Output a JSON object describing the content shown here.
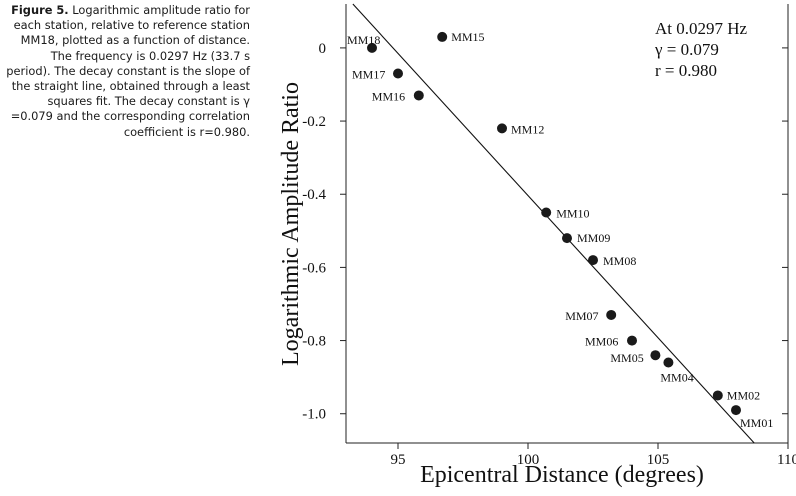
{
  "caption": {
    "label": "Figure 5.",
    "text": "Logarithmic amplitude ratio for each station, relative to reference station MM18, plotted as a function of distance. The frequency is 0.0297 Hz (33.7 s period). The decay constant is the slope of the straight line, obtained through a least squares fit. The decay constant is γ =0.079 and the corresponding correlation coefficient is r=0.980."
  },
  "chart_data": {
    "type": "scatter",
    "title": "",
    "xlabel": "Epicentral Distance (degrees)",
    "ylabel": "Logarithmic Amplitude Ratio",
    "xlim": [
      93,
      110
    ],
    "ylim": [
      -1.08,
      0.12
    ],
    "x_ticks": [
      95,
      100,
      105,
      110
    ],
    "x_tick_labels": [
      "95",
      "100",
      "105",
      "110"
    ],
    "y_ticks": [
      0,
      -0.2,
      -0.4,
      -0.6,
      -0.8,
      -1.0
    ],
    "y_tick_labels": [
      "0",
      "-0.2",
      "-0.4",
      "-0.6",
      "-0.8",
      "-1.0"
    ],
    "grid": false,
    "annotations": [
      "At 0.0297 Hz",
      "γ = 0.079",
      "r = 0.980"
    ],
    "points": [
      {
        "label": "MM18",
        "x": 94.0,
        "y": 0.0
      },
      {
        "label": "MM15",
        "x": 96.7,
        "y": 0.03
      },
      {
        "label": "MM17",
        "x": 95.0,
        "y": -0.07
      },
      {
        "label": "MM16",
        "x": 95.8,
        "y": -0.13
      },
      {
        "label": "MM12",
        "x": 99.0,
        "y": -0.22
      },
      {
        "label": "MM10",
        "x": 100.7,
        "y": -0.45
      },
      {
        "label": "MM09",
        "x": 101.5,
        "y": -0.52
      },
      {
        "label": "MM08",
        "x": 102.5,
        "y": -0.58
      },
      {
        "label": "MM07",
        "x": 103.2,
        "y": -0.73
      },
      {
        "label": "MM06",
        "x": 104.0,
        "y": -0.8
      },
      {
        "label": "MM05",
        "x": 104.9,
        "y": -0.84
      },
      {
        "label": "MM04",
        "x": 105.4,
        "y": -0.86
      },
      {
        "label": "MM02",
        "x": 107.3,
        "y": -0.95
      },
      {
        "label": "MM01",
        "x": 108.0,
        "y": -0.99
      }
    ],
    "fit_line": {
      "x": [
        93.2,
        108.7
      ],
      "y": [
        0.125,
        -1.08
      ]
    }
  }
}
